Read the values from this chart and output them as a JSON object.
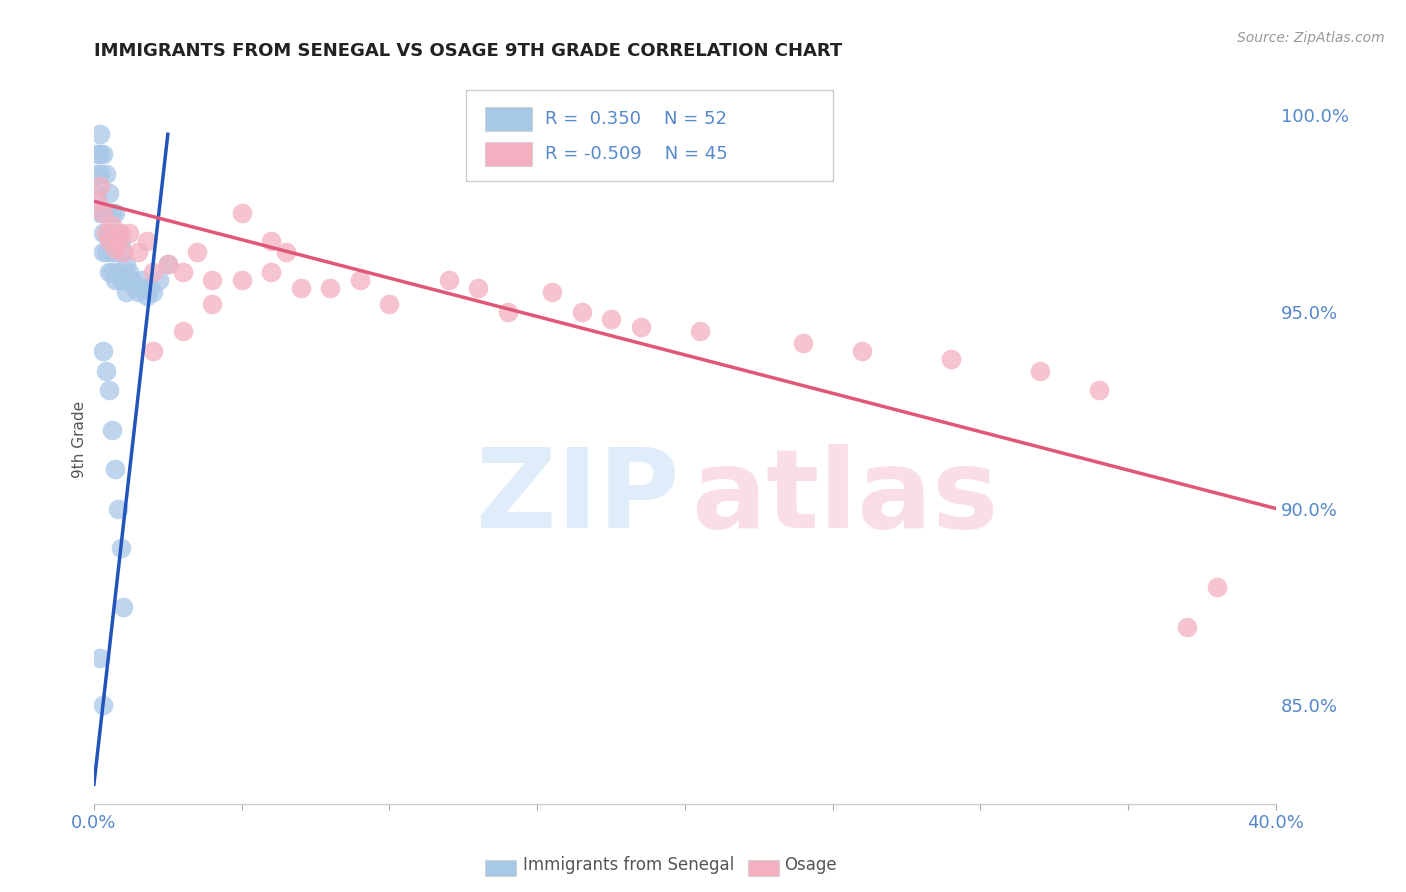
{
  "title": "IMMIGRANTS FROM SENEGAL VS OSAGE 9TH GRADE CORRELATION CHART",
  "source_text": "Source: ZipAtlas.com",
  "ylabel": "9th Grade",
  "xlim": [
    0.0,
    0.4
  ],
  "ylim": [
    0.825,
    1.01
  ],
  "ytick_vals_right": [
    0.85,
    0.9,
    0.95,
    1.0
  ],
  "ytick_labels_right": [
    "85.0%",
    "90.0%",
    "95.0%",
    "100.0%"
  ],
  "legend_blue_R": "0.350",
  "legend_blue_N": "52",
  "legend_pink_R": "-0.509",
  "legend_pink_N": "45",
  "blue_color": "#a8c8e8",
  "pink_color": "#f4b0c0",
  "blue_line_color": "#2255bb",
  "pink_line_color": "#e05878",
  "background_color": "#ffffff",
  "grid_color": "#bbbbbb",
  "title_color": "#222222",
  "tick_color": "#5588cc",
  "blue_scatter_x": [
    0.001,
    0.001,
    0.001,
    0.002,
    0.002,
    0.002,
    0.002,
    0.003,
    0.003,
    0.003,
    0.003,
    0.004,
    0.004,
    0.004,
    0.005,
    0.005,
    0.005,
    0.006,
    0.006,
    0.006,
    0.007,
    0.007,
    0.007,
    0.008,
    0.008,
    0.009,
    0.009,
    0.01,
    0.01,
    0.011,
    0.011,
    0.012,
    0.013,
    0.014,
    0.015,
    0.016,
    0.017,
    0.018,
    0.019,
    0.02,
    0.022,
    0.025,
    0.003,
    0.004,
    0.005,
    0.006,
    0.007,
    0.008,
    0.009,
    0.01,
    0.002,
    0.003
  ],
  "blue_scatter_y": [
    0.99,
    0.985,
    0.98,
    0.995,
    0.99,
    0.985,
    0.975,
    0.99,
    0.975,
    0.97,
    0.965,
    0.985,
    0.975,
    0.965,
    0.98,
    0.97,
    0.96,
    0.975,
    0.965,
    0.96,
    0.975,
    0.965,
    0.958,
    0.97,
    0.96,
    0.968,
    0.958,
    0.965,
    0.958,
    0.962,
    0.955,
    0.96,
    0.958,
    0.956,
    0.955,
    0.958,
    0.956,
    0.954,
    0.956,
    0.955,
    0.958,
    0.962,
    0.94,
    0.935,
    0.93,
    0.92,
    0.91,
    0.9,
    0.89,
    0.875,
    0.862,
    0.85
  ],
  "pink_scatter_x": [
    0.001,
    0.002,
    0.003,
    0.004,
    0.005,
    0.006,
    0.007,
    0.008,
    0.009,
    0.01,
    0.012,
    0.015,
    0.018,
    0.02,
    0.025,
    0.03,
    0.035,
    0.04,
    0.05,
    0.06,
    0.065,
    0.07,
    0.08,
    0.09,
    0.1,
    0.12,
    0.13,
    0.14,
    0.155,
    0.165,
    0.175,
    0.185,
    0.205,
    0.24,
    0.26,
    0.29,
    0.32,
    0.34,
    0.02,
    0.03,
    0.04,
    0.05,
    0.06,
    0.38,
    0.37
  ],
  "pink_scatter_y": [
    0.978,
    0.982,
    0.975,
    0.97,
    0.968,
    0.972,
    0.966,
    0.968,
    0.97,
    0.965,
    0.97,
    0.965,
    0.968,
    0.96,
    0.962,
    0.96,
    0.965,
    0.958,
    0.958,
    0.96,
    0.965,
    0.956,
    0.956,
    0.958,
    0.952,
    0.958,
    0.956,
    0.95,
    0.955,
    0.95,
    0.948,
    0.946,
    0.945,
    0.942,
    0.94,
    0.938,
    0.935,
    0.93,
    0.94,
    0.945,
    0.952,
    0.975,
    0.968,
    0.88,
    0.87
  ],
  "blue_trendline_x": [
    0.0,
    0.025
  ],
  "blue_trendline_y": [
    0.83,
    0.995
  ],
  "pink_trendline_x": [
    0.0,
    0.4
  ],
  "pink_trendline_y": [
    0.978,
    0.9
  ]
}
